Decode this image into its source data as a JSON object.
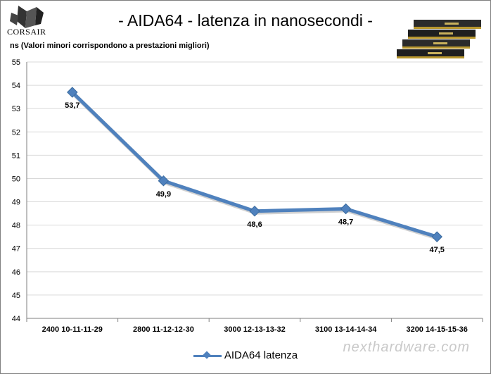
{
  "header": {
    "brand": "CORSAIR",
    "title": "- AIDA64 - latenza in nanosecondi -",
    "subtitle": "ns  (Valori minori corrispondono a prestazioni  migliori)"
  },
  "watermark": "nexthardware.com",
  "colors": {
    "series": "#4f81bd",
    "grid": "#d9d9d9",
    "axis": "#7f7f7f"
  },
  "chart_data": {
    "type": "line",
    "title": "- AIDA64 - latenza in nanosecondi -",
    "ylabel": "ns",
    "xlabel": "",
    "ylim": [
      44,
      55
    ],
    "yticks": [
      44,
      45,
      46,
      47,
      48,
      49,
      50,
      51,
      52,
      53,
      54,
      55
    ],
    "grid": true,
    "legend_position": "bottom",
    "categories": [
      "2400 10-11-11-29",
      "2800 11-12-12-30",
      "3000 12-13-13-32",
      "3100 13-14-14-34",
      "3200 14-15-15-36"
    ],
    "series": [
      {
        "name": "AIDA64 latenza",
        "values": [
          53.7,
          49.9,
          48.6,
          48.7,
          47.5
        ],
        "labels": [
          "53,7",
          "49,9",
          "48,6",
          "48,7",
          "47,5"
        ]
      }
    ]
  }
}
